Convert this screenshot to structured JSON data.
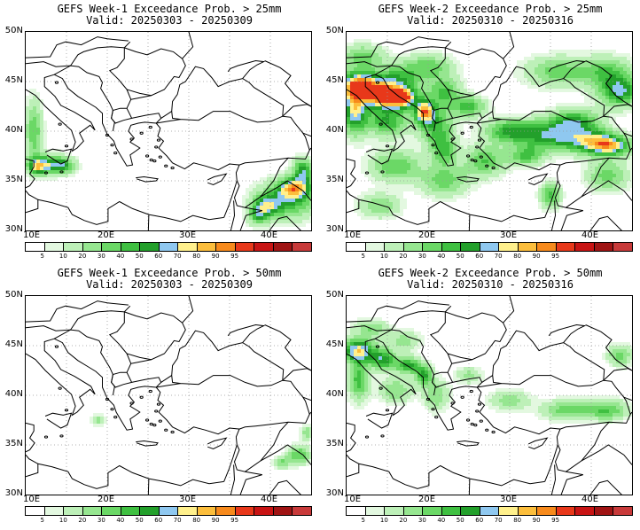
{
  "colorbar": {
    "colors": [
      "#ffffff",
      "#e3f8e0",
      "#bdf0b8",
      "#96e690",
      "#6bd866",
      "#3fc041",
      "#23a02b",
      "#8fc8f0",
      "#fff08c",
      "#fcbe3c",
      "#f78a1c",
      "#e8381a",
      "#c81414",
      "#a01414",
      "#c83a3a"
    ],
    "labels": [
      "5",
      "10",
      "20",
      "30",
      "40",
      "50",
      "60",
      "70",
      "80",
      "90",
      "95"
    ]
  },
  "axes": {
    "lat_labels": [
      "50N",
      "45N",
      "40N",
      "35N",
      "30N"
    ],
    "lon_labels": [
      "10E",
      "20E",
      "30E",
      "40E"
    ]
  },
  "panels": [
    {
      "title": "GEFS Week-1 Exceedance Prob. > 25mm",
      "valid": "Valid: 20250303 - 20250309"
    },
    {
      "title": "GEFS Week-2 Exceedance Prob. > 25mm",
      "valid": "Valid: 20250310 - 20250316"
    },
    {
      "title": "GEFS Week-1 Exceedance Prob. > 50mm",
      "valid": "Valid: 20250303 - 20250309"
    },
    {
      "title": "GEFS Week-2 Exceedance Prob. > 50mm",
      "valid": "Valid: 20250310 - 20250316"
    }
  ]
}
